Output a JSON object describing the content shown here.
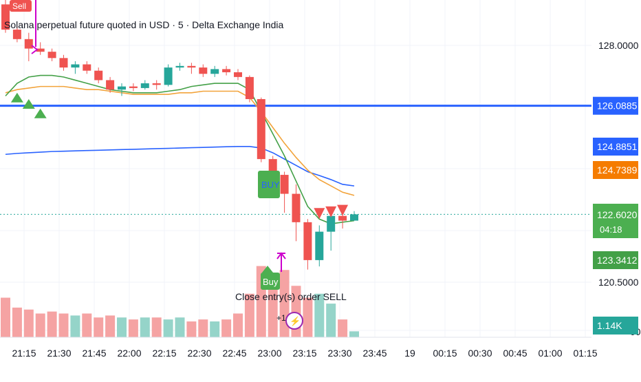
{
  "header": {
    "title": "Solana perpetual future quoted in USD · 5 · Delta Exchange India"
  },
  "colors": {
    "up": "#26a69a",
    "down": "#ef5350",
    "up_volume": "#95d4c9",
    "down_volume": "#f5a3a3",
    "ema_fast": "#43a047",
    "ema_mid": "#f2a33a",
    "ema_slow": "#2962ff",
    "hline": "#2962ff",
    "marker_magenta": "#cc00cc"
  },
  "chart_data": {
    "type": "candlestick",
    "symbol_interval": "5",
    "x_ticks": [
      "21:15",
      "21:30",
      "21:45",
      "22:00",
      "22:15",
      "22:30",
      "22:45",
      "23:00",
      "23:15",
      "23:30",
      "23:45",
      "19",
      "00:15",
      "00:30",
      "00:45",
      "01:00",
      "01:15"
    ],
    "y_ticks": [
      "128.0000",
      "120.5000"
    ],
    "ylim": [
      119.7,
      129.6
    ],
    "candles": [
      {
        "t": "21:05",
        "o": 129.3,
        "h": 129.5,
        "l": 128.4,
        "c": 128.5
      },
      {
        "t": "21:10",
        "o": 128.5,
        "h": 128.6,
        "l": 128.1,
        "c": 128.2
      },
      {
        "t": "21:15",
        "o": 128.2,
        "h": 128.4,
        "l": 127.5,
        "c": 127.9
      },
      {
        "t": "21:20",
        "o": 127.9,
        "h": 128.1,
        "l": 127.7,
        "c": 127.8
      },
      {
        "t": "21:25",
        "o": 127.8,
        "h": 127.9,
        "l": 127.5,
        "c": 127.6
      },
      {
        "t": "21:30",
        "o": 127.6,
        "h": 127.7,
        "l": 127.2,
        "c": 127.3
      },
      {
        "t": "21:35",
        "o": 127.3,
        "h": 127.5,
        "l": 127.1,
        "c": 127.4
      },
      {
        "t": "21:40",
        "o": 127.4,
        "h": 127.5,
        "l": 127.1,
        "c": 127.2
      },
      {
        "t": "21:45",
        "o": 127.2,
        "h": 127.3,
        "l": 126.8,
        "c": 126.9
      },
      {
        "t": "21:50",
        "o": 126.9,
        "h": 127.0,
        "l": 126.5,
        "c": 126.6
      },
      {
        "t": "21:55",
        "o": 126.6,
        "h": 126.8,
        "l": 126.4,
        "c": 126.7
      },
      {
        "t": "22:00",
        "o": 126.7,
        "h": 126.8,
        "l": 126.55,
        "c": 126.65
      },
      {
        "t": "22:05",
        "o": 126.65,
        "h": 126.9,
        "l": 126.6,
        "c": 126.8
      },
      {
        "t": "22:10",
        "o": 126.8,
        "h": 126.9,
        "l": 126.6,
        "c": 126.75
      },
      {
        "t": "22:15",
        "o": 126.75,
        "h": 127.4,
        "l": 126.7,
        "c": 127.3
      },
      {
        "t": "22:20",
        "o": 127.3,
        "h": 127.45,
        "l": 127.2,
        "c": 127.35
      },
      {
        "t": "22:25",
        "o": 127.35,
        "h": 127.45,
        "l": 127.1,
        "c": 127.3
      },
      {
        "t": "22:30",
        "o": 127.3,
        "h": 127.4,
        "l": 127.0,
        "c": 127.1
      },
      {
        "t": "22:35",
        "o": 127.1,
        "h": 127.35,
        "l": 127.0,
        "c": 127.25
      },
      {
        "t": "22:40",
        "o": 127.25,
        "h": 127.35,
        "l": 127.05,
        "c": 127.15
      },
      {
        "t": "22:45",
        "o": 127.15,
        "h": 127.25,
        "l": 126.9,
        "c": 127.0
      },
      {
        "t": "22:50",
        "o": 127.0,
        "h": 127.05,
        "l": 126.2,
        "c": 126.3
      },
      {
        "t": "22:55",
        "o": 126.3,
        "h": 126.35,
        "l": 124.3,
        "c": 124.4
      },
      {
        "t": "23:00",
        "o": 124.4,
        "h": 124.5,
        "l": 123.8,
        "c": 123.9
      },
      {
        "t": "23:05",
        "o": 123.9,
        "h": 124.0,
        "l": 122.7,
        "c": 123.3
      },
      {
        "t": "23:10",
        "o": 123.3,
        "h": 123.6,
        "l": 121.8,
        "c": 122.4
      },
      {
        "t": "23:15",
        "o": 122.4,
        "h": 122.5,
        "l": 120.9,
        "c": 121.2
      },
      {
        "t": "23:20",
        "o": 121.2,
        "h": 122.3,
        "l": 121.0,
        "c": 122.1
      },
      {
        "t": "23:25",
        "o": 122.1,
        "h": 122.7,
        "l": 121.5,
        "c": 122.6
      },
      {
        "t": "23:30",
        "o": 122.6,
        "h": 122.9,
        "l": 122.2,
        "c": 122.45
      },
      {
        "t": "23:35",
        "o": 122.45,
        "h": 122.75,
        "l": 122.45,
        "c": 122.65
      }
    ],
    "volume": [
      2.0,
      1.5,
      1.4,
      1.2,
      1.3,
      1.2,
      1.1,
      1.2,
      1.0,
      1.1,
      1.0,
      0.9,
      1.0,
      1.0,
      0.9,
      1.0,
      0.8,
      0.9,
      0.8,
      0.9,
      1.2,
      2.2,
      3.6,
      3.0,
      3.4,
      2.6,
      2.0,
      2.2,
      1.7,
      0.9,
      0.3
    ],
    "volume_max": 4.0,
    "ema_fast": [
      126.4,
      126.8,
      127.0,
      127.05,
      127.05,
      127.0,
      126.9,
      126.8,
      126.7,
      126.6,
      126.55,
      126.5,
      126.5,
      126.5,
      126.55,
      126.6,
      126.7,
      126.75,
      126.8,
      126.8,
      126.8,
      126.6,
      125.9,
      125.2,
      124.5,
      123.7,
      122.9,
      122.5,
      122.35,
      122.4,
      122.45
    ],
    "ema_mid": [
      126.5,
      126.6,
      126.65,
      126.7,
      126.7,
      126.7,
      126.65,
      126.6,
      126.6,
      126.55,
      126.5,
      126.45,
      126.45,
      126.45,
      126.45,
      126.5,
      126.5,
      126.55,
      126.55,
      126.55,
      126.55,
      126.35,
      125.9,
      125.4,
      124.9,
      124.45,
      124.05,
      123.75,
      123.55,
      123.35,
      123.25
    ],
    "ema_slow": [
      124.55,
      124.58,
      124.6,
      124.62,
      124.64,
      124.65,
      124.66,
      124.67,
      124.68,
      124.69,
      124.7,
      124.71,
      124.72,
      124.73,
      124.74,
      124.75,
      124.76,
      124.77,
      124.78,
      124.79,
      124.8,
      124.8,
      124.75,
      124.6,
      124.4,
      124.2,
      124.0,
      123.88,
      123.75,
      123.6,
      123.55
    ],
    "hline": 126.0885,
    "labels": {
      "hline": "126.0885",
      "ema_slow": "124.8851",
      "ema_mid": "124.7389",
      "last_price": "122.6020",
      "countdown": "04:18",
      "ema_fast": "123.3412",
      "volume": "1.14K"
    },
    "annotations": {
      "sell_tag": "Sell",
      "buy_top": "BUY",
      "buy_bottom": "Buy",
      "close_note": "Close entry(s) order SELL",
      "plus_badge": "+1",
      "bolt": "⚡"
    }
  }
}
